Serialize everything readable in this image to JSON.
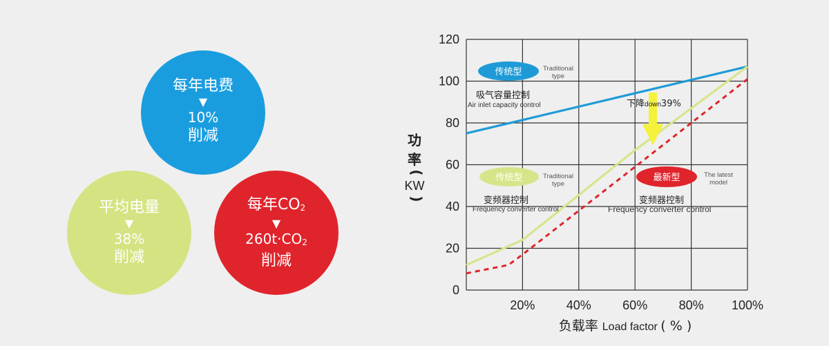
{
  "bubbles": {
    "electricity": {
      "title": "每年电费",
      "arrow": "▼",
      "value": "10%",
      "note": "削减",
      "color": "#1a9ddf"
    },
    "average": {
      "title": "平均电量",
      "arrow": "▼",
      "value": "38%",
      "note": "削减",
      "color": "#d5e382"
    },
    "co2": {
      "title_prefix": "每年CO",
      "title_sub": "2",
      "arrow": "▼",
      "value_prefix": "260t·CO",
      "value_sub": "2",
      "note": "削减",
      "color": "#e0242c"
    }
  },
  "chart_data": {
    "type": "line",
    "x": [
      0,
      20,
      40,
      60,
      80,
      100
    ],
    "xticks": [
      "20%",
      "40%",
      "60%",
      "80%",
      "100%"
    ],
    "xlim": [
      0,
      100
    ],
    "yticks": [
      "0",
      "20",
      "40",
      "60",
      "80",
      "100",
      "120"
    ],
    "ylim": [
      0,
      120
    ],
    "ylabel_chars": [
      "功",
      "率",
      "(",
      "KW",
      ")"
    ],
    "xlabel_zh": "负载率",
    "xlabel_en": "Load factor",
    "xlabel_unit": "( % )",
    "grid": true,
    "series": [
      {
        "color": "#1e9bd7",
        "dash": false,
        "points": [
          [
            0,
            75
          ],
          [
            100,
            107
          ]
        ]
      },
      {
        "color": "#d7e58a",
        "dash": false,
        "points": [
          [
            0,
            12
          ],
          [
            20,
            24
          ],
          [
            60,
            67
          ],
          [
            100,
            107
          ]
        ]
      },
      {
        "color": "#e0242c",
        "dash": true,
        "points": [
          [
            0,
            8
          ],
          [
            15,
            12
          ],
          [
            20,
            17
          ],
          [
            40,
            38
          ],
          [
            100,
            101
          ]
        ]
      }
    ],
    "annotations": {
      "traditional_top_oval": "传统型",
      "traditional_top_en": [
        "Traditional",
        "type"
      ],
      "air_inlet_zh": "吸气容量控制",
      "air_inlet_en": "Air inlet capacity control",
      "reduction_prefix": "下降",
      "reduction_small": "down",
      "reduction_value": "39%",
      "traditional_mid_oval": "传统型",
      "traditional_mid_en": [
        "Traditional",
        "type"
      ],
      "latest_oval": "最新型",
      "latest_en": [
        "The latest",
        "model"
      ],
      "vfd_zh_1": "变频器控制",
      "vfd_en_1": "Frequency converter control",
      "vfd_zh_2": "变频器控制",
      "vfd_en_2": "Frequency converter control"
    },
    "colors": {
      "blue_oval": "#1e9bd7",
      "green_oval": "#d7e58a",
      "red_oval": "#e0242c",
      "arrow": "#f4f23a"
    }
  }
}
